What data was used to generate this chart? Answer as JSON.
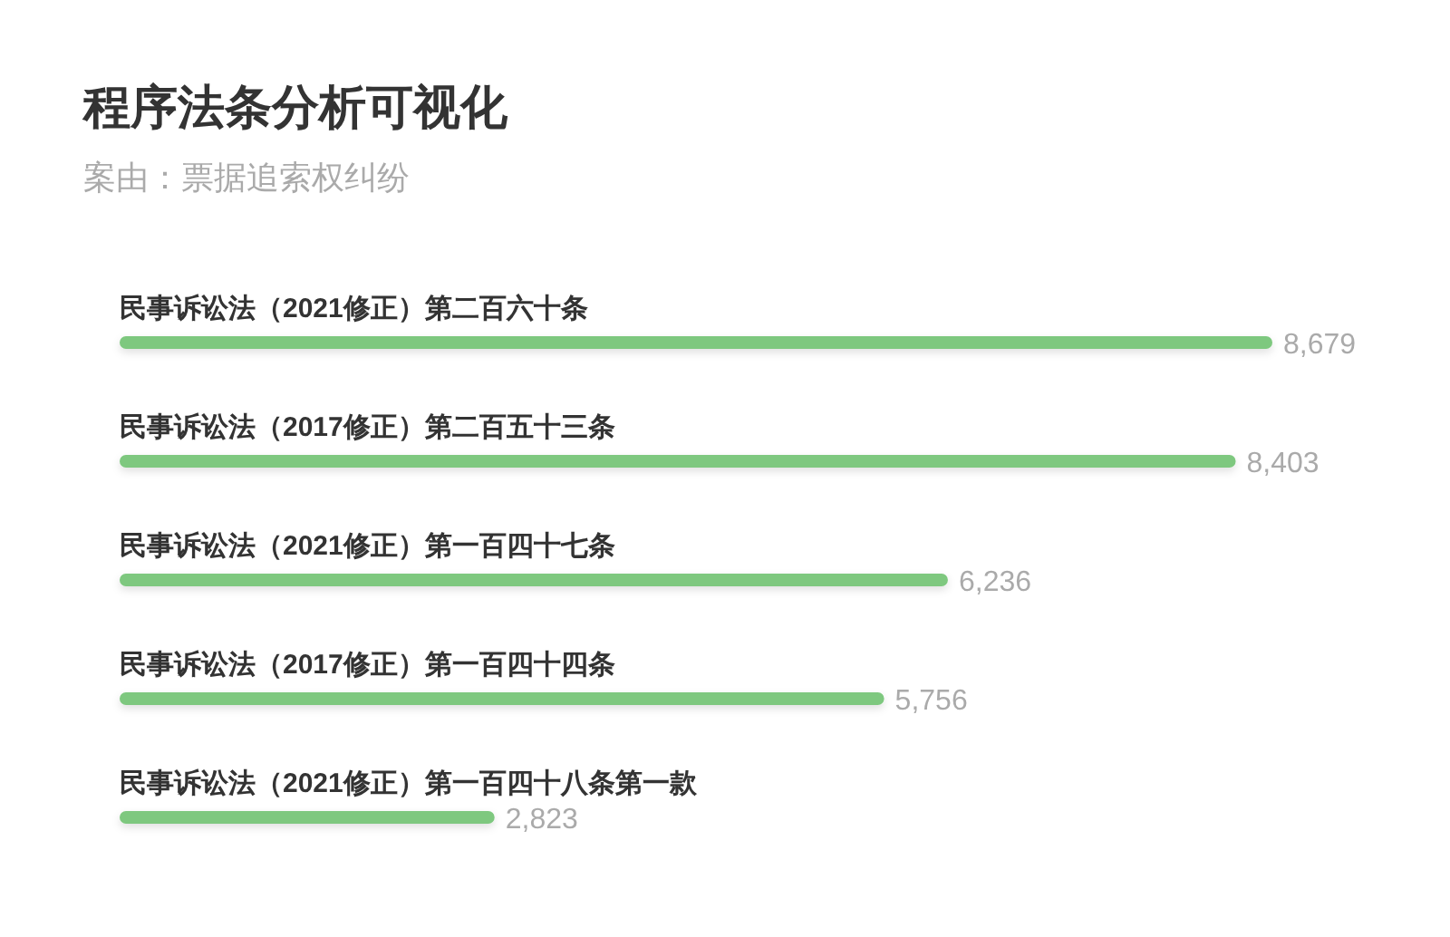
{
  "chart_data": {
    "type": "bar",
    "orientation": "horizontal",
    "title": "程序法条分析可视化",
    "subtitle": "案由：票据追索权纠纷",
    "categories": [
      "民事诉讼法（2021修正）第二百六十条",
      "民事诉讼法（2017修正）第二百五十三条",
      "民事诉讼法（2021修正）第一百四十七条",
      "民事诉讼法（2017修正）第一百四十四条",
      "民事诉讼法（2021修正）第一百四十八条第一款"
    ],
    "values": [
      8679,
      8403,
      6236,
      5756,
      2823
    ],
    "value_labels": [
      "8,679",
      "8,403",
      "6,236",
      "5,756",
      "2,823"
    ],
    "color": "#7ec87f"
  }
}
